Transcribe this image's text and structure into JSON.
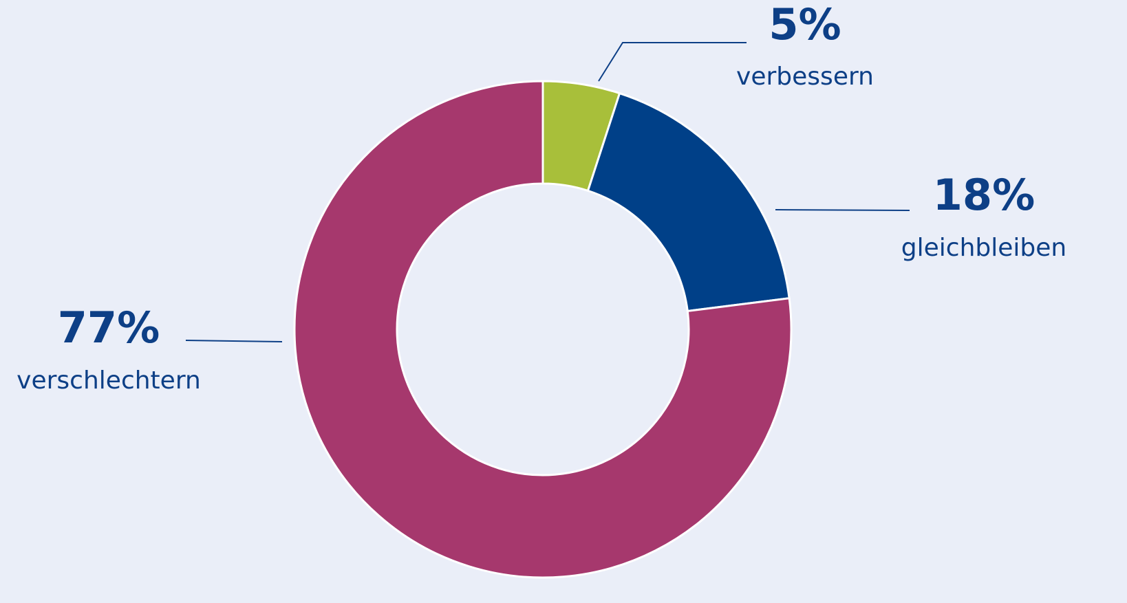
{
  "chart_data": {
    "type": "donut",
    "categories": [
      "verbessern",
      "gleichbleiben",
      "verschlechtern"
    ],
    "values": [
      5,
      18,
      77
    ],
    "value_labels": [
      "5%",
      "18%",
      "77%"
    ],
    "colors": [
      "#a8bf3a",
      "#004088",
      "#a6386d"
    ]
  }
}
